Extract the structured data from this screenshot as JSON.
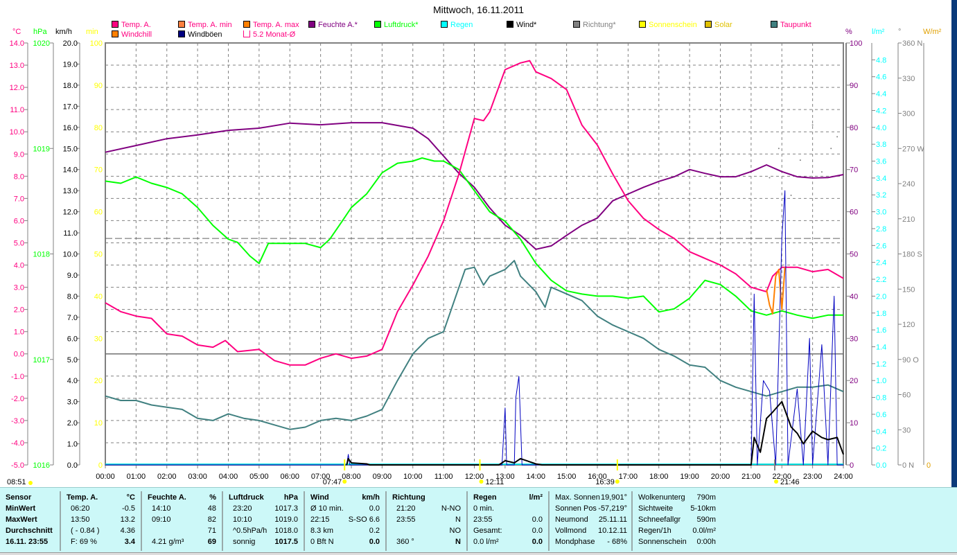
{
  "title": "Mittwoch, 16.11.2011",
  "legend": [
    {
      "label": "Temp. A.",
      "color": "#ff0080",
      "text": "#ff0080"
    },
    {
      "label": "Temp. A. min",
      "color": "#ff8040",
      "text": "#ff0080"
    },
    {
      "label": "Temp. A. max",
      "color": "#ff8000",
      "text": "#ff0080"
    },
    {
      "label": "Feuchte A.*",
      "color": "#800080",
      "text": "#800080"
    },
    {
      "label": "Luftdruck*",
      "color": "#00ff00",
      "text": "#00ff00"
    },
    {
      "label": "Regen",
      "color": "#00ffff",
      "text": "#00ffff"
    },
    {
      "label": "Wind*",
      "color": "#000000",
      "text": "#000000"
    },
    {
      "label": "Richtung*",
      "color": "#808080",
      "text": "#808080"
    },
    {
      "label": "Sonnenschein",
      "color": "#ffff00",
      "text": "#ffff00"
    },
    {
      "label": "Solar",
      "color": "#e0c000",
      "text": "#e0c000"
    },
    {
      "label": "Taupunkt",
      "color": "#408080",
      "text": "#ff0080"
    },
    {
      "label": "Windchill",
      "color": "#ff8000",
      "text": "#ff0080"
    },
    {
      "label": "Windböen",
      "color": "#000080",
      "text": "#000000"
    },
    {
      "label": "5.2 Monat-Ø",
      "color": "none",
      "text": "#ff0080"
    }
  ],
  "units": {
    "c": "°C",
    "hpa": "hPa",
    "kmh": "km/h",
    "min": "min",
    "pct": "%",
    "lm2": "l/m²",
    "deg": "°",
    "wm2": "W/m²"
  },
  "chart_data": {
    "type": "line",
    "title": "Mittwoch, 16.11.2011",
    "x_unit": "hour",
    "xlim": [
      0,
      24
    ],
    "x_ticks": [
      "00:00",
      "01:00",
      "02:00",
      "03:00",
      "04:00",
      "05:00",
      "06:00",
      "07:00",
      "08:00",
      "09:00",
      "10:00",
      "11:00",
      "12:00",
      "13:00",
      "14:00",
      "15:00",
      "16:00",
      "17:00",
      "18:00",
      "19:00",
      "20:00",
      "21:00",
      "22:00",
      "23:00",
      "24:00"
    ],
    "axes": {
      "c": {
        "range": [
          -5,
          14
        ],
        "ticks": [
          "14.0",
          "13.0",
          "12.0",
          "11.0",
          "10.0",
          "9.0",
          "8.0",
          "7.0",
          "6.0",
          "5.0",
          "4.0",
          "3.0",
          "2.0",
          "1.0",
          "0.0",
          "-1.0",
          "-2.0",
          "-3.0",
          "-4.0",
          "-5.0"
        ]
      },
      "hpa": {
        "range": [
          1016,
          1020
        ],
        "ticks": [
          "1020",
          "1019",
          "1018",
          "1017",
          "1016"
        ]
      },
      "kmh": {
        "range": [
          0,
          20
        ],
        "ticks": [
          "20.0",
          "19.0",
          "18.0",
          "17.0",
          "16.0",
          "15.0",
          "14.0",
          "13.0",
          "12.0",
          "11.0",
          "10.0",
          "9.0",
          "8.0",
          "7.0",
          "6.0",
          "5.0",
          "4.0",
          "3.0",
          "2.0",
          "1.0",
          "0.0"
        ]
      },
      "min": {
        "range": [
          0,
          100
        ],
        "ticks": [
          "100",
          "90",
          "80",
          "70",
          "60",
          "50",
          "40",
          "30",
          "20",
          "10",
          "0"
        ]
      },
      "pct": {
        "range": [
          0,
          100
        ],
        "ticks": [
          "100",
          "90",
          "80",
          "70",
          "60",
          "50",
          "40",
          "30",
          "20",
          "10",
          "0"
        ]
      },
      "lm2": {
        "range": [
          0,
          5
        ],
        "ticks": [
          "4.8",
          "4.6",
          "4.4",
          "4.2",
          "4.0",
          "3.8",
          "3.6",
          "3.4",
          "3.2",
          "3.0",
          "2.8",
          "2.6",
          "2.4",
          "2.2",
          "2.0",
          "1.8",
          "1.6",
          "1.4",
          "1.2",
          "1.0",
          "0.8",
          "0.6",
          "0.4",
          "0.2",
          "0.0"
        ]
      },
      "deg": {
        "range": [
          0,
          360
        ],
        "ticks": [
          "360 N",
          "330",
          "300",
          "270 W",
          "240",
          "210",
          "180 S",
          "150",
          "120",
          "90 O",
          "60",
          "30",
          "0 N"
        ]
      },
      "wm2": {
        "ticks": [
          "0"
        ]
      }
    },
    "series": [
      {
        "name": "Feuchte A.",
        "axis": "pct",
        "color": "#800080",
        "x": [
          0,
          1,
          2,
          3,
          4,
          5,
          6,
          7,
          8,
          9,
          10,
          10.5,
          11,
          11.5,
          12,
          12.5,
          13,
          13.5,
          14,
          14.5,
          15,
          15.5,
          16,
          16.5,
          17,
          17.5,
          18,
          18.5,
          19,
          19.5,
          20,
          20.5,
          21,
          21.5,
          22,
          22.5,
          23,
          23.5,
          24
        ],
        "y": [
          74.1,
          75.7,
          77.3,
          78.2,
          79.3,
          79.8,
          81.0,
          80.6,
          81.1,
          81.1,
          79.8,
          77.3,
          73.2,
          69.1,
          65.8,
          60.9,
          56.8,
          54.4,
          51.1,
          51.9,
          54.4,
          56.8,
          58.5,
          62.6,
          64.2,
          65.8,
          67.2,
          68.3,
          70.0,
          69.1,
          68.3,
          68.3,
          69.5,
          71.1,
          69.5,
          68.3,
          68.0,
          68.1,
          68.8
        ]
      },
      {
        "name": "Luftdruck",
        "axis": "hpa",
        "color": "#00ff00",
        "x": [
          0,
          0.5,
          1,
          1.5,
          2,
          2.5,
          3,
          3.5,
          4,
          4.3,
          4.7,
          5,
          5.3,
          6,
          6.5,
          7,
          7.3,
          7.7,
          8,
          8.5,
          9,
          9.5,
          10,
          10.3,
          10.7,
          11,
          11.5,
          12,
          12.5,
          13,
          13.5,
          14,
          14.5,
          15,
          15.5,
          16,
          16.5,
          17,
          17.5,
          18,
          18.5,
          19,
          19.5,
          20,
          20.5,
          21,
          21.5,
          22,
          22.5,
          23,
          23.5,
          24
        ],
        "y": [
          1018.69,
          1018.67,
          1018.73,
          1018.67,
          1018.63,
          1018.57,
          1018.44,
          1018.27,
          1018.14,
          1018.11,
          1017.98,
          1017.91,
          1018.1,
          1018.1,
          1018.1,
          1018.06,
          1018.14,
          1018.31,
          1018.44,
          1018.57,
          1018.77,
          1018.86,
          1018.88,
          1018.91,
          1018.88,
          1018.88,
          1018.8,
          1018.6,
          1018.4,
          1018.31,
          1018.14,
          1017.91,
          1017.75,
          1017.65,
          1017.62,
          1017.6,
          1017.6,
          1017.58,
          1017.6,
          1017.45,
          1017.48,
          1017.58,
          1017.75,
          1017.71,
          1017.6,
          1017.46,
          1017.42,
          1017.46,
          1017.42,
          1017.39,
          1017.42,
          1017.42
        ]
      },
      {
        "name": "Taupunkt",
        "axis": "c",
        "color": "#408080",
        "x": [
          0,
          0.5,
          1,
          1.5,
          2,
          2.5,
          3,
          3.5,
          4,
          4.5,
          5,
          5.5,
          6,
          6.5,
          7,
          7.5,
          8,
          8.5,
          9,
          9.5,
          10,
          10.5,
          11,
          11.3,
          11.7,
          12,
          12.3,
          12.5,
          13,
          13.3,
          13.5,
          14,
          14.3,
          14.5,
          15,
          15.5,
          16,
          16.5,
          17,
          17.5,
          18,
          18.5,
          19,
          19.5,
          20,
          20.5,
          21,
          21.5,
          22,
          22.5,
          23,
          23.5,
          24
        ],
        "y": [
          -1.9,
          -2.1,
          -2.1,
          -2.3,
          -2.4,
          -2.5,
          -2.9,
          -3.0,
          -2.7,
          -2.9,
          -3.0,
          -3.2,
          -3.4,
          -3.3,
          -3.0,
          -2.9,
          -3.0,
          -2.8,
          -2.5,
          -1.2,
          0.0,
          0.7,
          1.0,
          2.2,
          3.8,
          3.9,
          3.1,
          3.5,
          3.8,
          4.2,
          3.5,
          2.8,
          2.1,
          3.0,
          2.7,
          2.4,
          1.7,
          1.3,
          1.0,
          0.7,
          0.2,
          -0.1,
          -0.5,
          -0.6,
          -1.2,
          -1.5,
          -1.7,
          -1.9,
          -1.7,
          -1.5,
          -1.5,
          -1.4,
          -1.7
        ]
      },
      {
        "name": "Temp. A.",
        "axis": "c",
        "color": "#ff0080",
        "x": [
          0,
          0.5,
          1,
          1.5,
          2,
          2.5,
          3,
          3.5,
          3.9,
          4.3,
          5,
          5.5,
          6,
          6.5,
          7,
          7.5,
          8,
          8.5,
          9,
          9.5,
          10,
          10.5,
          11,
          11.5,
          12,
          12.3,
          12.5,
          13,
          13.5,
          13.8,
          14,
          14.5,
          15,
          15.5,
          16,
          16.5,
          17,
          17.5,
          18,
          18.5,
          19,
          19.5,
          20,
          20.5,
          21,
          21.5,
          21.7,
          22,
          22.5,
          23,
          23.5,
          24
        ],
        "y": [
          2.3,
          1.9,
          1.7,
          1.6,
          0.9,
          0.8,
          0.4,
          0.3,
          0.6,
          0.1,
          0.2,
          -0.3,
          -0.5,
          -0.5,
          -0.2,
          0.0,
          -0.2,
          -0.1,
          0.2,
          1.9,
          3.1,
          4.4,
          6.0,
          8.1,
          10.6,
          10.5,
          10.9,
          12.8,
          13.1,
          13.2,
          12.7,
          12.4,
          11.9,
          10.3,
          9.4,
          8.1,
          6.9,
          6.1,
          5.6,
          5.2,
          4.6,
          4.3,
          4.0,
          3.6,
          3.0,
          2.8,
          3.5,
          3.9,
          3.9,
          3.7,
          3.8,
          3.4
        ]
      },
      {
        "name": "Windchill",
        "axis": "c",
        "color": "#ff8000",
        "x": [
          21.5,
          21.6,
          21.7,
          21.8,
          21.9,
          22.0,
          22.1
        ],
        "y": [
          2.9,
          2.2,
          1.8,
          3.5,
          3.8,
          2.0,
          3.9
        ]
      },
      {
        "name": "Windböen",
        "axis": "kmh",
        "color": "#0000c0",
        "x": [
          0,
          7.85,
          7.9,
          7.95,
          12.9,
          13.0,
          13.05,
          13.3,
          13.35,
          13.45,
          13.55,
          13.6,
          21.0,
          21.1,
          21.2,
          21.4,
          21.6,
          21.8,
          22.0,
          22.1,
          22.2,
          22.5,
          22.7,
          22.9,
          23.0,
          23.3,
          23.5,
          23.7,
          23.8,
          24
        ],
        "y": [
          0,
          0,
          0.5,
          0,
          0,
          2.7,
          0,
          0,
          3.2,
          4.2,
          0,
          0,
          0,
          8.1,
          0,
          4.0,
          3.5,
          0,
          10.8,
          13.0,
          0,
          3.6,
          0,
          6.0,
          0,
          5.7,
          0,
          8.0,
          0,
          0
        ]
      },
      {
        "name": "Wind",
        "axis": "kmh",
        "color": "#000000",
        "x": [
          7.85,
          7.9,
          8.0,
          8.5,
          8.6,
          12.8,
          13.0,
          13.3,
          13.5,
          14.0,
          14.2,
          21.0,
          21.1,
          21.3,
          21.5,
          21.7,
          22.0,
          22.3,
          22.5,
          22.7,
          23.0,
          23.3,
          23.5,
          23.8,
          24
        ],
        "y": [
          0,
          0.3,
          0.1,
          0.05,
          0,
          0,
          0.2,
          0.1,
          0.3,
          0.05,
          0,
          0,
          1.3,
          0.6,
          2.2,
          2.5,
          3.0,
          1.8,
          1.5,
          1.0,
          1.6,
          1.3,
          1.2,
          1.3,
          0.5
        ]
      }
    ],
    "reference_lines": [
      {
        "name": "5.2 Monat-Ø",
        "axis": "c",
        "value": 5.2
      },
      {
        "name": "0 °C",
        "axis": "c",
        "value": 0
      }
    ],
    "sun_events": [
      {
        "time": "07:47",
        "hour": 7.78
      },
      {
        "time": "12:11",
        "hour": 12.18
      },
      {
        "time": "16:39",
        "hour": 16.65
      },
      {
        "time": "21:46",
        "hour": 21.77
      }
    ],
    "corner_time": "08:51"
  },
  "panel": {
    "sensor": {
      "h": "Sensor",
      "r1": "MinWert",
      "r2": "MaxWert",
      "r3": "Durchschnitt",
      "r4": "16.11. 23:55"
    },
    "temp": {
      "h": "Temp. A.",
      "u": "°C",
      "r1a": "06:20",
      "r1b": "-0.5",
      "r2a": "13:50",
      "r2b": "13.2",
      "r3a": "( - 0.84 )",
      "r3b": "4.36",
      "r4a": "F: 69 %",
      "r4b": "3.4"
    },
    "hum": {
      "h": "Feuchte A.",
      "u": "%",
      "r1a": "14:10",
      "r1b": "48",
      "r2a": "09:10",
      "r2b": "82",
      "r3a": "",
      "r3b": "71",
      "r4a": "4.21 g/m³",
      "r4b": "69"
    },
    "press": {
      "h": "Luftdruck",
      "u": "hPa",
      "r1a": "23:20",
      "r1b": "1017.3",
      "r2a": "10:10",
      "r2b": "1019.0",
      "r3a": "^0.5hPa/h",
      "r3b": "1018.0",
      "r4a": "sonnig",
      "r4b": "1017.5"
    },
    "wind": {
      "h": "Wind",
      "u": "km/h",
      "r1a": "Ø 10 min.",
      "r1b": "0.0",
      "r2a": "22:15",
      "r2b": "S-SO 6.6",
      "r3a": "8.3 km",
      "r3b": "0.2",
      "r4a": "0 Bft N",
      "r4b": "0.0"
    },
    "dir": {
      "h": "Richtung",
      "u": "",
      "r1a": "21:20",
      "r1b": "N-NO",
      "r2a": "23:55",
      "r2b": "N",
      "r3a": "",
      "r3b": "NO",
      "r4a": "360 °",
      "r4b": "N"
    },
    "rain": {
      "h": "Regen",
      "u": "l/m²",
      "r1a": "0 min.",
      "r1b": "",
      "r2a": "23:55",
      "r2b": "0.0",
      "r3a": "Gesamt:",
      "r3b": "0.0",
      "r4a": "0.0 l/m²",
      "r4b": "0.0"
    },
    "astro": [
      [
        "Max. Sonnen",
        "19,901°"
      ],
      [
        "Sonnen Pos",
        "-57,219°"
      ],
      [
        "Neumond",
        "25.11.11"
      ],
      [
        "Vollmond",
        "10.12.11"
      ],
      [
        "Mondphase",
        "- 68%"
      ]
    ],
    "misc": [
      [
        "Wolkenunterg",
        "790m"
      ],
      [
        "Sichtweite",
        "5-10km"
      ],
      [
        "Schneefallgr",
        "590m"
      ],
      [
        "Regen/1h",
        "0.0l/m²"
      ],
      [
        "Sonnenschein",
        "0:00h"
      ]
    ]
  }
}
